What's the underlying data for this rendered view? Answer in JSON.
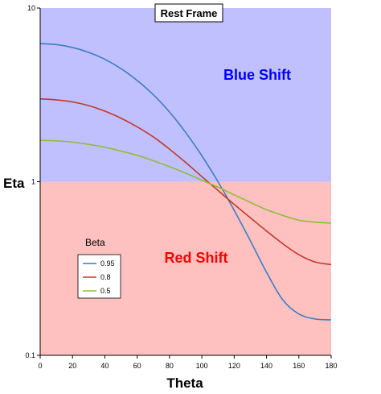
{
  "chart_data": {
    "type": "line",
    "title": "Rest Frame",
    "xlabel": "Theta",
    "ylabel": "Eta",
    "xlim": [
      0,
      180
    ],
    "ylim": [
      0.1,
      10
    ],
    "yscale": "log",
    "xticks": [
      0,
      20,
      40,
      60,
      80,
      100,
      120,
      140,
      160,
      180
    ],
    "yticks": [
      0.1,
      1,
      10
    ],
    "ytick_labels": [
      "0.1",
      "1",
      "10"
    ],
    "grid": false,
    "regions": [
      {
        "label": "Blue Shift",
        "y_from": 1,
        "y_to": 10,
        "fill": "#c0c0ff",
        "text_color": "#0000ff"
      },
      {
        "label": "Red Shift",
        "y_from": 0.1,
        "y_to": 1,
        "fill": "#ffc0c0",
        "text_color": "#ff0000"
      }
    ],
    "legend": {
      "title": "Beta",
      "placement": "left"
    },
    "series": [
      {
        "name": "0.95",
        "color": "#3b7dc4",
        "x": [
          0,
          10,
          20,
          30,
          40,
          50,
          60,
          70,
          80,
          90,
          100,
          110,
          120,
          130,
          140,
          150,
          160,
          170,
          180
        ],
        "y": [
          6.24,
          6.16,
          5.93,
          5.56,
          5.07,
          4.48,
          3.83,
          3.17,
          2.52,
          1.92,
          1.41,
          1.0,
          0.684,
          0.457,
          0.301,
          0.209,
          0.173,
          0.162,
          0.16
        ]
      },
      {
        "name": "0.8",
        "color": "#c0392b",
        "x": [
          0,
          10,
          20,
          30,
          40,
          50,
          60,
          70,
          80,
          90,
          100,
          110,
          120,
          130,
          140,
          150,
          160,
          170,
          180
        ],
        "y": [
          3.0,
          2.96,
          2.88,
          2.74,
          2.55,
          2.32,
          2.07,
          1.81,
          1.54,
          1.29,
          1.07,
          0.89,
          0.74,
          0.62,
          0.52,
          0.44,
          0.38,
          0.345,
          0.333
        ]
      },
      {
        "name": "0.5",
        "color": "#8fbc3a",
        "x": [
          0,
          10,
          20,
          30,
          40,
          50,
          60,
          70,
          80,
          90,
          100,
          110,
          120,
          130,
          140,
          150,
          160,
          170,
          180
        ],
        "y": [
          1.73,
          1.72,
          1.69,
          1.64,
          1.58,
          1.5,
          1.42,
          1.32,
          1.22,
          1.12,
          1.02,
          0.93,
          0.84,
          0.76,
          0.69,
          0.64,
          0.6,
          0.585,
          0.577
        ]
      }
    ]
  }
}
